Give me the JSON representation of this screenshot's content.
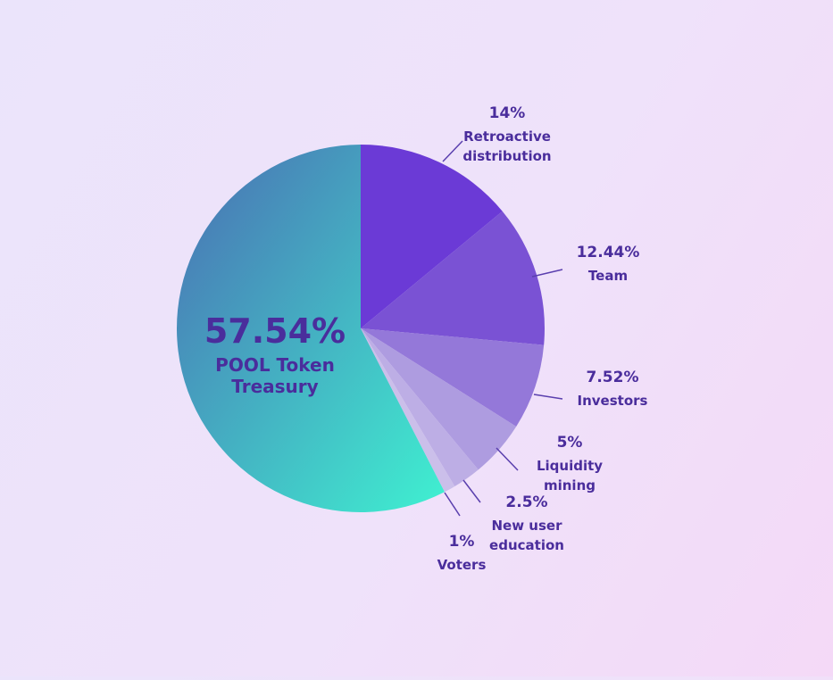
{
  "chart_data": {
    "type": "pie",
    "slices": [
      {
        "pct_label": "14%",
        "label_lines": [
          "Retroactive",
          "distribution"
        ],
        "value": 14,
        "color": "#6b3ad6"
      },
      {
        "pct_label": "12.44%",
        "label_lines": [
          "Team"
        ],
        "value": 12.44,
        "color": "#7a52d4"
      },
      {
        "pct_label": "7.52%",
        "label_lines": [
          "Investors"
        ],
        "value": 7.52,
        "color": "#9478d9"
      },
      {
        "pct_label": "5%",
        "label_lines": [
          "Liquidity",
          "mining"
        ],
        "value": 5,
        "color": "#ae9ce0"
      },
      {
        "pct_label": "2.5%",
        "label_lines": [
          "New user",
          "education"
        ],
        "value": 2.5,
        "color": "#bdaee5"
      },
      {
        "pct_label": "1%",
        "label_lines": [
          "Voters"
        ],
        "value": 1,
        "color": "#cbbfea"
      },
      {
        "pct_label": "57.54%",
        "label_lines": [
          "POOL Token",
          "Treasury"
        ],
        "value": 57.54,
        "color": "#3fd9c6"
      }
    ]
  }
}
